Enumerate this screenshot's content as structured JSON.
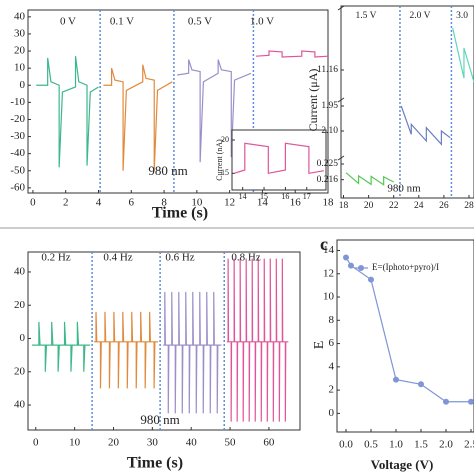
{
  "chart_data": [
    {
      "type": "line",
      "xlabel": "Time (s)",
      "annotation": "980 nm",
      "segment_labels": [
        "0 V",
        "0.1 V",
        "0.5 V",
        "1.0 V"
      ],
      "xlim": [
        -0.3,
        18
      ],
      "xticks": [
        0,
        2,
        4,
        6,
        8,
        10,
        12,
        14,
        16,
        18
      ],
      "ylim": [
        -63,
        44
      ],
      "yticks": [
        -60,
        -50,
        -40,
        -30,
        -20,
        -10,
        0,
        10,
        20,
        30,
        40
      ],
      "dividers": [
        4.1,
        8.6,
        13.45
      ],
      "series": [
        {
          "color": "#3cb88a",
          "x": [
            0.2,
            0.9,
            0.9,
            1.1,
            1.6,
            1.6,
            1.8,
            2.6,
            2.6,
            2.8,
            3.3,
            3.3,
            3.5,
            4.0
          ],
          "values": [
            0,
            0,
            16,
            2,
            0,
            -48,
            -4,
            -1,
            17,
            2,
            0,
            -47,
            -4,
            -1
          ]
        },
        {
          "color": "#e08a3c",
          "x": [
            4.3,
            4.8,
            4.8,
            5.0,
            5.5,
            5.5,
            5.7,
            6.7,
            6.7,
            6.9,
            7.4,
            7.4,
            7.6,
            8.5
          ],
          "values": [
            0,
            0,
            10,
            3,
            2,
            -50,
            -3,
            2,
            12,
            4,
            3,
            -50,
            -3,
            2
          ]
        },
        {
          "color": "#9b8fc9",
          "x": [
            8.8,
            9.5,
            9.5,
            9.7,
            10.2,
            10.2,
            10.4,
            11.3,
            11.3,
            11.5,
            12.1,
            12.1,
            12.3,
            13.3
          ],
          "values": [
            6,
            7,
            15,
            9,
            8,
            -45,
            2,
            7,
            15,
            9,
            8,
            -42,
            3,
            7
          ]
        },
        {
          "color": "#e0559a",
          "x": [
            13.6,
            14.4,
            14.4,
            15.2,
            15.2,
            16.4,
            16.4,
            17.2,
            17.2,
            18
          ],
          "values": [
            17,
            17.5,
            20,
            19.5,
            16.5,
            17,
            20,
            19.5,
            16.5,
            17
          ]
        }
      ]
    },
    {
      "type": "line",
      "ylabel": "Current (nA)",
      "xlim": [
        13.5,
        17.9
      ],
      "xticks": [
        14,
        15,
        16,
        17
      ],
      "ylim": [
        12.5,
        21.5
      ],
      "yticks": [
        15,
        20
      ],
      "series": [
        {
          "color": "#e0559a",
          "x": [
            13.6,
            14.1,
            14.1,
            15.2,
            15.2,
            16.0,
            16.0,
            17.1,
            17.1,
            17.8
          ],
          "values": [
            15,
            15.5,
            19.5,
            19,
            15,
            15.5,
            19.5,
            19,
            15,
            15.4
          ]
        }
      ]
    },
    {
      "type": "line",
      "ylabel": "Current (μA)",
      "annotation": "980 nm",
      "segment_labels": [
        "1.5 V",
        "2.0 V",
        "3.0"
      ],
      "xlim": [
        17.8,
        28.4
      ],
      "xticks": [
        18,
        20,
        22,
        24,
        26,
        28
      ],
      "ysegments": [
        {
          "ylim": [
            0.2135,
            0.2195
          ],
          "yticks": [
            0.216
          ]
        },
        {
          "ylim": [
            0.2235,
            0.226
          ],
          "yticks": [
            0.225
          ]
        },
        {
          "ylim": [
            1.914,
            2.262
          ],
          "yticks": [
            1.95,
            {
              "value": 2.1,
              "label": "2.10"
            }
          ]
        },
        {
          "ylim": [
            10.85,
            11.25
          ],
          "yticks": [
            11.16
          ]
        }
      ],
      "dividers": [
        22.5,
        26.6
      ],
      "series": [
        {
          "color": "#55c855",
          "x": [
            18.2,
            19.2,
            19.2,
            20.2,
            20.2,
            21.2,
            21.2,
            22
          ],
          "values": [
            0.2145,
            0.2168,
            0.2152,
            0.217,
            0.2153,
            0.2171,
            0.2154,
            0.2165
          ]
        },
        {
          "color": "#6a7fc4",
          "x": [
            22.6,
            23.4,
            23.4,
            24.6,
            24.6,
            25.8,
            25.8,
            26.5
          ],
          "values": [
            1.95,
            2.12,
            2.06,
            2.16,
            2.08,
            2.18,
            2.1,
            2.14
          ]
        },
        {
          "color": "#5fd6b8",
          "x": [
            26.7,
            27.6,
            27.6,
            28.4
          ],
          "values": [
            10.95,
            11.2,
            11.05,
            11.22
          ]
        }
      ]
    },
    {
      "type": "line",
      "xlabel": "Time (s)",
      "annotation": "980 nm",
      "segment_labels": [
        "0.2 Hz",
        "0.4 Hz",
        "0.6 Hz",
        "0.8 Hz"
      ],
      "xlim": [
        -2,
        68
      ],
      "xticks": [
        0,
        10,
        20,
        30,
        40,
        50,
        60
      ],
      "ylim": [
        -55,
        52
      ],
      "yticks": [
        {
          "value": -40,
          "label": "40"
        },
        {
          "value": -20,
          "label": "20"
        },
        0,
        20,
        40
      ],
      "dividers": [
        14.5,
        32,
        48.5
      ],
      "series": [
        {
          "color": "#3cb88a",
          "x": [
            -1,
            0.8,
            0.8,
            1.1,
            2.45,
            2.45,
            2.75,
            4.1,
            4.1,
            4.4,
            5.75,
            5.75,
            6.05,
            7.4,
            7.4,
            7.7,
            9.05,
            9.05,
            9.35,
            10.7,
            10.7,
            11.0,
            12.35,
            12.35,
            12.65,
            14
          ],
          "values": [
            -4,
            -4,
            10,
            -4,
            -4,
            -20,
            -4,
            -4,
            10,
            -4,
            -4,
            -20,
            -4,
            -4,
            10,
            -4,
            -4,
            -20,
            -4,
            -4,
            10,
            -4,
            -4,
            -20,
            -4,
            -4
          ]
        },
        {
          "color": "#e08a3c",
          "x": [
            15,
            15.5,
            15.5,
            15.7,
            16.65,
            16.65,
            16.85,
            17.8,
            17.8,
            18.0,
            18.95,
            18.95,
            19.15,
            20.1,
            20.1,
            20.3,
            21.25,
            21.25,
            21.45,
            22.4,
            22.4,
            22.6,
            23.55,
            23.55,
            23.75,
            24.7,
            24.7,
            24.9,
            25.85,
            25.85,
            26.05,
            27.0,
            27.0,
            27.2,
            28.15,
            28.15,
            28.35,
            29.3,
            29.3,
            29.5,
            30.45,
            30.45,
            30.65,
            31.5
          ],
          "values": [
            -2,
            -2,
            16,
            -2,
            -2,
            -30,
            -2,
            -2,
            16,
            -2,
            -2,
            -30,
            -2,
            -2,
            16,
            -2,
            -2,
            -30,
            -2,
            -2,
            16,
            -2,
            -2,
            -30,
            -2,
            -2,
            16,
            -2,
            -2,
            -30,
            -2,
            -2,
            16,
            -2,
            -2,
            -30,
            -2,
            -2,
            16,
            -2,
            -2,
            -30,
            -2,
            -2
          ]
        },
        {
          "color": "#9b8fc9",
          "x": [
            32.8,
            33.2,
            33.2,
            33.35,
            34.1,
            34.1,
            34.25,
            35,
            35,
            35.15,
            35.9,
            35.9,
            36.05,
            36.8,
            36.8,
            36.95,
            37.7,
            37.7,
            37.85,
            38.6,
            38.6,
            38.75,
            39.5,
            39.5,
            39.65,
            40.4,
            40.4,
            40.55,
            41.3,
            41.3,
            41.45,
            42.2,
            42.2,
            42.35,
            43.1,
            43.1,
            43.25,
            44,
            44,
            44.15,
            44.9,
            44.9,
            45.05,
            45.8,
            45.8,
            45.95,
            46.7,
            46.7,
            46.85,
            47.8
          ],
          "values": [
            -4,
            -4,
            28,
            -4,
            -4,
            -45,
            -4,
            -4,
            28,
            -4,
            -4,
            -45,
            -4,
            -4,
            28,
            -4,
            -4,
            -45,
            -4,
            -4,
            28,
            -4,
            -4,
            -45,
            -4,
            -4,
            28,
            -4,
            -4,
            -45,
            -4,
            -4,
            28,
            -4,
            -4,
            -45,
            -4,
            -4,
            28,
            -4,
            -4,
            -45,
            -4,
            -4,
            28,
            -4,
            -4,
            -45,
            -4,
            -4
          ]
        },
        {
          "color": "#e0559a",
          "x": [
            49.2,
            49.5,
            49.5,
            49.6,
            50.28,
            50.28,
            50.38,
            51.05,
            51.05,
            51.15,
            51.83,
            51.83,
            51.93,
            52.6,
            52.6,
            52.7,
            53.38,
            53.38,
            53.48,
            54.15,
            54.15,
            54.25,
            54.93,
            54.93,
            55.03,
            55.7,
            55.7,
            55.8,
            56.48,
            56.48,
            56.58,
            57.25,
            57.25,
            57.35,
            58.03,
            58.03,
            58.13,
            58.8,
            58.8,
            58.9,
            59.58,
            59.58,
            59.68,
            60.35,
            60.35,
            60.45,
            61.13,
            61.13,
            61.23,
            61.9,
            61.9,
            62.0,
            62.68,
            62.68,
            62.78,
            63.45,
            63.45,
            63.55,
            64.23,
            64.23,
            64.33,
            65
          ],
          "values": [
            -2,
            -2,
            48,
            -2,
            -2,
            -50,
            -2,
            -2,
            48,
            -2,
            -2,
            -50,
            -2,
            -2,
            48,
            -2,
            -2,
            -50,
            -2,
            -2,
            48,
            -2,
            -2,
            -50,
            -2,
            -2,
            48,
            -2,
            -2,
            -50,
            -2,
            -2,
            48,
            -2,
            -2,
            -50,
            -2,
            -2,
            48,
            -2,
            -2,
            -50,
            -2,
            -2,
            48,
            -2,
            -2,
            -50,
            -2,
            -2,
            48,
            -2,
            -2,
            -50,
            -2,
            -2,
            48,
            -2,
            -2,
            -50,
            -2,
            -2
          ]
        }
      ]
    },
    {
      "type": "line",
      "panel_label": "c",
      "xlabel": "Voltage (V)",
      "ylabel": "E",
      "markers": true,
      "xlim": [
        -0.18,
        2.56
      ],
      "xticks": [
        {
          "value": 0,
          "label": "0.0"
        },
        0.5,
        {
          "value": 1,
          "label": "1.0"
        },
        1.5,
        {
          "value": 2,
          "label": "2.0"
        },
        2.5
      ],
      "ylim": [
        -1.6,
        14.9
      ],
      "yticks": [
        0,
        2,
        4,
        6,
        8,
        10,
        12,
        14
      ],
      "series": [
        {
          "name": "E=(Iphoto+pyro)/I",
          "color": "#7f95d6",
          "x": [
            0,
            0.1,
            0.5,
            1.0,
            1.5,
            2.0,
            2.5
          ],
          "values": [
            13.4,
            12.7,
            11.5,
            2.9,
            2.5,
            1.0,
            1.0
          ]
        }
      ]
    }
  ]
}
